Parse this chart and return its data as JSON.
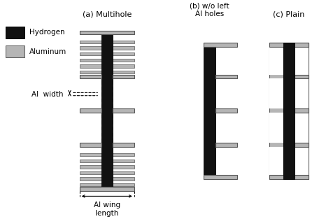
{
  "fig_width": 4.76,
  "fig_height": 3.13,
  "dpi": 100,
  "bg_color": "#ffffff",
  "hydrogen_color": "#111111",
  "aluminum_color": "#b5b5b5",
  "aluminum_edge": "#555555",
  "title_a": "(a) Multihole",
  "title_b": "(b) w/o left\nAl holes",
  "title_c": "(c) Plain",
  "legend_hydrogen": "Hydrogen",
  "legend_aluminum": "Aluminum",
  "label_al_width": "Al  width",
  "label_al_wing": "Al wing\nlength"
}
